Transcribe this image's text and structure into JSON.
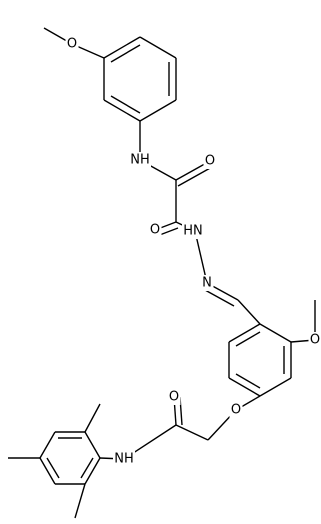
{
  "labels": [
    "O",
    "NH",
    "O",
    "O",
    "HN",
    "N",
    "O",
    "O",
    "O",
    "NH"
  ]
}
